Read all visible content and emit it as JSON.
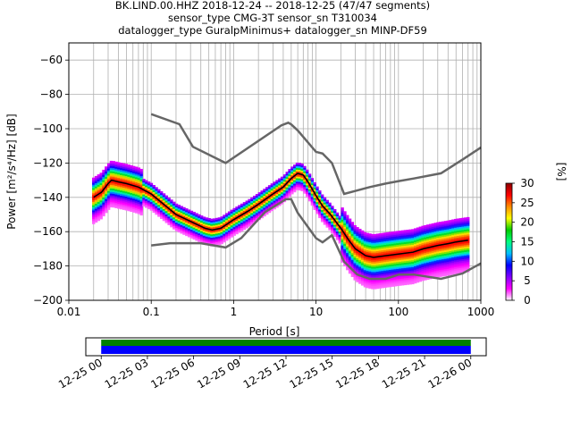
{
  "title_lines": [
    "BK.LIND.00.HHZ   2018-12-24 -- 2018-12-25  (47/47 segments)",
    "sensor_type CMG-3T sensor_sn T310034",
    "datalogger_type GuralpMinimus+ datalogger_sn MINP-DF59"
  ],
  "colorbar": {
    "label": "[%]",
    "ticks": [
      "0",
      "5",
      "10",
      "15",
      "20",
      "25",
      "30"
    ],
    "range": [
      0,
      30
    ],
    "colors": [
      "#ffffff",
      "#ff00ff",
      "#7f00ff",
      "#0000ff",
      "#00bfff",
      "#00ff7f",
      "#00cc00",
      "#ffff00",
      "#ff8c00",
      "#ff0000",
      "#8b0000"
    ]
  },
  "chart_data": [
    {
      "type": "heatmap",
      "xlabel": "Period [s]",
      "ylabel": "Power [m²/s⁴/Hz] [dB]",
      "x_scale": "log",
      "xlim": [
        0.01,
        1000
      ],
      "ylim": [
        -200,
        -50
      ],
      "grid": true,
      "x_ticks": [
        {
          "value": 0.01,
          "label": "0.01"
        },
        {
          "value": 0.1,
          "label": "0.1"
        },
        {
          "value": 1,
          "label": "1"
        },
        {
          "value": 10,
          "label": "10"
        },
        {
          "value": 100,
          "label": "100"
        },
        {
          "value": 1000,
          "label": "1000"
        }
      ],
      "y_ticks": [
        {
          "value": -60,
          "label": "−60"
        },
        {
          "value": -80,
          "label": "−80"
        },
        {
          "value": -100,
          "label": "−100"
        },
        {
          "value": -120,
          "label": "−120"
        },
        {
          "value": -140,
          "label": "−140"
        },
        {
          "value": -160,
          "label": "−160"
        },
        {
          "value": -180,
          "label": "−180"
        },
        {
          "value": -200,
          "label": "−200"
        }
      ],
      "noise_models": {
        "color": "#666666",
        "high": {
          "period": [
            0.1,
            0.22,
            0.32,
            0.8,
            3.8,
            4.6,
            5.0,
            6.0,
            10.0,
            12.0,
            15.6,
            21.9,
            31.6,
            45.0,
            70.0,
            101.0,
            154.0,
            328.0,
            600.0,
            1000.0
          ],
          "power": [
            -91.5,
            -97.4,
            -110.5,
            -120.0,
            -98.0,
            -96.5,
            -97.5,
            -101.0,
            -113.5,
            -114.5,
            -120.0,
            -138.0,
            -136.0,
            -134.0,
            -132.0,
            -130.5,
            -129.0,
            -126.0,
            -118.0,
            -111.0
          ]
        },
        "low": {
          "period": [
            0.1,
            0.17,
            0.4,
            0.8,
            1.24,
            2.4,
            4.3,
            5.0,
            6.0,
            10.0,
            12.0,
            15.6,
            21.9,
            31.6,
            45.0,
            70.0,
            101.0,
            154.0,
            328.0,
            600.0,
            1000.0
          ],
          "power": [
            -168.0,
            -166.7,
            -166.7,
            -169.2,
            -163.7,
            -148.6,
            -141.1,
            -141.1,
            -149.0,
            -163.8,
            -166.2,
            -162.1,
            -177.5,
            -185.0,
            -187.5,
            -187.5,
            -185.0,
            -185.0,
            -187.5,
            -184.4,
            -178.5
          ]
        }
      },
      "mode_curve": {
        "color": "#000000",
        "period": [
          0.02,
          0.025,
          0.03,
          0.033,
          0.04,
          0.05,
          0.07,
          0.1,
          0.15,
          0.2,
          0.3,
          0.45,
          0.55,
          0.7,
          1.0,
          1.5,
          2.0,
          3.0,
          4.0,
          5.0,
          6.0,
          7.0,
          8.0,
          10.0,
          12.0,
          15.0,
          20.0,
          25.0,
          30.0,
          40.0,
          50.0,
          70.0,
          100.0,
          150.0,
          200.0,
          300.0,
          400.0,
          500.0,
          700.0
        ],
        "power": [
          -140.0,
          -137.0,
          -132.0,
          -130.0,
          -131.0,
          -132.0,
          -134.0,
          -138.0,
          -145.0,
          -150.0,
          -154.0,
          -158.0,
          -159.0,
          -158.0,
          -153.0,
          -148.0,
          -144.0,
          -138.0,
          -134.0,
          -129.0,
          -126.0,
          -127.0,
          -131.0,
          -139.0,
          -145.0,
          -150.0,
          -158.0,
          -165.0,
          -170.0,
          -174.0,
          -175.0,
          -174.0,
          -173.0,
          -172.0,
          -170.0,
          -168.0,
          -167.0,
          -166.0,
          -165.0
        ]
      }
    },
    {
      "type": "bar",
      "orientation": "horizontal",
      "x_ticks": [
        "12-25 00",
        "12-25 03",
        "12-25 06",
        "12-25 09",
        "12-25 12",
        "12-25 15",
        "12-25 18",
        "12-25 21",
        "12-26 00"
      ],
      "xlim_hours": [
        -1,
        25
      ],
      "series": [
        {
          "color": "#008000",
          "start_hour": 0,
          "end_hour": 24,
          "level": "upper"
        },
        {
          "color": "#0000ff",
          "start_hour": 0,
          "end_hour": 24,
          "level": "lower"
        }
      ]
    }
  ]
}
